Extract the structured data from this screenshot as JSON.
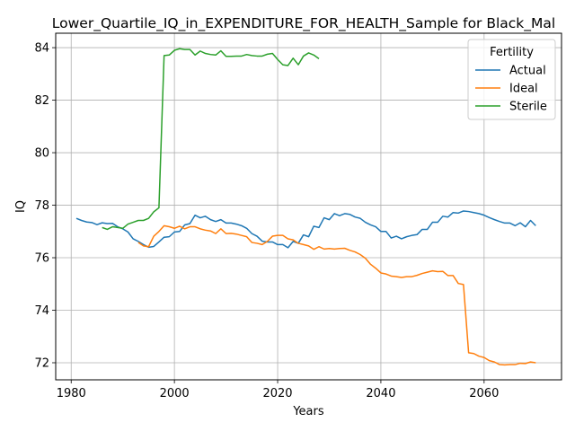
{
  "chart_data": {
    "type": "line",
    "title": "Lower_Quartile_IQ_in_EXPENDITURE_FOR_HEALTH_Sample for Black_Mal",
    "xlabel": "Years",
    "ylabel": "IQ",
    "xlim": [
      1977,
      2075
    ],
    "ylim": [
      71.35,
      84.55
    ],
    "xticks": [
      1980,
      2000,
      2020,
      2040,
      2060
    ],
    "yticks": [
      72,
      74,
      76,
      78,
      80,
      82,
      84
    ],
    "grid": true,
    "legend": {
      "title": "Fertility",
      "position": "top-right"
    },
    "series": [
      {
        "name": "Actual",
        "color": "#1f77b4",
        "points": [
          [
            1981,
            77.5
          ],
          [
            1982,
            77.42
          ],
          [
            1983,
            77.36
          ],
          [
            1984,
            77.34
          ],
          [
            1985,
            77.26
          ],
          [
            1986,
            77.33
          ],
          [
            1987,
            77.3
          ],
          [
            1988,
            77.31
          ],
          [
            1989,
            77.18
          ],
          [
            1990,
            77.1
          ],
          [
            1991,
            76.98
          ],
          [
            1992,
            76.72
          ],
          [
            1993,
            76.62
          ],
          [
            1994,
            76.5
          ],
          [
            1995,
            76.4
          ],
          [
            1996,
            76.43
          ],
          [
            1997,
            76.6
          ],
          [
            1998,
            76.78
          ],
          [
            1999,
            76.8
          ],
          [
            2000,
            76.98
          ],
          [
            2001,
            77.0
          ],
          [
            2002,
            77.25
          ],
          [
            2003,
            77.3
          ],
          [
            2004,
            77.62
          ],
          [
            2005,
            77.52
          ],
          [
            2006,
            77.58
          ],
          [
            2007,
            77.45
          ],
          [
            2008,
            77.38
          ],
          [
            2009,
            77.45
          ],
          [
            2010,
            77.32
          ],
          [
            2011,
            77.32
          ],
          [
            2012,
            77.28
          ],
          [
            2013,
            77.22
          ],
          [
            2014,
            77.12
          ],
          [
            2015,
            76.92
          ],
          [
            2016,
            76.82
          ],
          [
            2017,
            76.63
          ],
          [
            2018,
            76.6
          ],
          [
            2019,
            76.6
          ],
          [
            2020,
            76.5
          ],
          [
            2021,
            76.5
          ],
          [
            2022,
            76.38
          ],
          [
            2023,
            76.62
          ],
          [
            2024,
            76.55
          ],
          [
            2025,
            76.87
          ],
          [
            2026,
            76.8
          ],
          [
            2027,
            77.2
          ],
          [
            2028,
            77.15
          ],
          [
            2029,
            77.52
          ],
          [
            2030,
            77.45
          ],
          [
            2031,
            77.68
          ],
          [
            2032,
            77.6
          ],
          [
            2033,
            77.68
          ],
          [
            2034,
            77.65
          ],
          [
            2035,
            77.55
          ],
          [
            2036,
            77.5
          ],
          [
            2037,
            77.35
          ],
          [
            2038,
            77.25
          ],
          [
            2039,
            77.18
          ],
          [
            2040,
            77.0
          ],
          [
            2041,
            77.0
          ],
          [
            2042,
            76.75
          ],
          [
            2043,
            76.82
          ],
          [
            2044,
            76.72
          ],
          [
            2045,
            76.8
          ],
          [
            2046,
            76.85
          ],
          [
            2047,
            76.88
          ],
          [
            2048,
            77.08
          ],
          [
            2049,
            77.08
          ],
          [
            2050,
            77.35
          ],
          [
            2051,
            77.35
          ],
          [
            2052,
            77.58
          ],
          [
            2053,
            77.55
          ],
          [
            2054,
            77.72
          ],
          [
            2055,
            77.7
          ],
          [
            2056,
            77.78
          ],
          [
            2057,
            77.76
          ],
          [
            2058,
            77.72
          ],
          [
            2059,
            77.68
          ],
          [
            2060,
            77.62
          ],
          [
            2061,
            77.53
          ],
          [
            2062,
            77.45
          ],
          [
            2063,
            77.38
          ],
          [
            2064,
            77.32
          ],
          [
            2065,
            77.32
          ],
          [
            2066,
            77.22
          ],
          [
            2067,
            77.33
          ],
          [
            2068,
            77.18
          ],
          [
            2069,
            77.42
          ],
          [
            2070,
            77.22
          ]
        ]
      },
      {
        "name": "Ideal",
        "color": "#ff7f0e",
        "points": [
          [
            1993,
            76.58
          ],
          [
            1994,
            76.45
          ],
          [
            1995,
            76.42
          ],
          [
            1996,
            76.82
          ],
          [
            1997,
            77.0
          ],
          [
            1998,
            77.22
          ],
          [
            1999,
            77.18
          ],
          [
            2000,
            77.12
          ],
          [
            2001,
            77.2
          ],
          [
            2002,
            77.1
          ],
          [
            2003,
            77.18
          ],
          [
            2004,
            77.18
          ],
          [
            2005,
            77.1
          ],
          [
            2006,
            77.05
          ],
          [
            2007,
            77.02
          ],
          [
            2008,
            76.92
          ],
          [
            2009,
            77.1
          ],
          [
            2010,
            76.92
          ],
          [
            2011,
            76.93
          ],
          [
            2012,
            76.9
          ],
          [
            2013,
            76.85
          ],
          [
            2014,
            76.8
          ],
          [
            2015,
            76.58
          ],
          [
            2016,
            76.55
          ],
          [
            2017,
            76.5
          ],
          [
            2018,
            76.62
          ],
          [
            2019,
            76.82
          ],
          [
            2020,
            76.85
          ],
          [
            2021,
            76.85
          ],
          [
            2022,
            76.72
          ],
          [
            2023,
            76.68
          ],
          [
            2024,
            76.55
          ],
          [
            2025,
            76.5
          ],
          [
            2026,
            76.45
          ],
          [
            2027,
            76.32
          ],
          [
            2028,
            76.42
          ],
          [
            2029,
            76.33
          ],
          [
            2030,
            76.35
          ],
          [
            2031,
            76.33
          ],
          [
            2032,
            76.35
          ],
          [
            2033,
            76.36
          ],
          [
            2034,
            76.28
          ],
          [
            2035,
            76.22
          ],
          [
            2036,
            76.12
          ],
          [
            2037,
            75.98
          ],
          [
            2038,
            75.75
          ],
          [
            2039,
            75.6
          ],
          [
            2040,
            75.42
          ],
          [
            2041,
            75.38
          ],
          [
            2042,
            75.3
          ],
          [
            2043,
            75.28
          ],
          [
            2044,
            75.25
          ],
          [
            2045,
            75.28
          ],
          [
            2046,
            75.28
          ],
          [
            2047,
            75.33
          ],
          [
            2048,
            75.4
          ],
          [
            2049,
            75.45
          ],
          [
            2050,
            75.5
          ],
          [
            2051,
            75.47
          ],
          [
            2052,
            75.48
          ],
          [
            2053,
            75.32
          ],
          [
            2054,
            75.32
          ],
          [
            2055,
            75.02
          ],
          [
            2056,
            74.98
          ],
          [
            2057,
            72.38
          ],
          [
            2058,
            72.35
          ],
          [
            2059,
            72.25
          ],
          [
            2060,
            72.2
          ],
          [
            2061,
            72.08
          ],
          [
            2062,
            72.03
          ],
          [
            2063,
            71.93
          ],
          [
            2064,
            71.92
          ],
          [
            2065,
            71.93
          ],
          [
            2066,
            71.93
          ],
          [
            2067,
            71.98
          ],
          [
            2068,
            71.97
          ],
          [
            2069,
            72.03
          ],
          [
            2070,
            72.0
          ]
        ]
      },
      {
        "name": "Sterile",
        "color": "#2ca02c",
        "points": [
          [
            1986,
            77.15
          ],
          [
            1987,
            77.08
          ],
          [
            1988,
            77.18
          ],
          [
            1989,
            77.15
          ],
          [
            1990,
            77.12
          ],
          [
            1991,
            77.28
          ],
          [
            1992,
            77.35
          ],
          [
            1993,
            77.42
          ],
          [
            1994,
            77.42
          ],
          [
            1995,
            77.5
          ],
          [
            1996,
            77.75
          ],
          [
            1997,
            77.9
          ],
          [
            1998,
            83.7
          ],
          [
            1999,
            83.72
          ],
          [
            2000,
            83.9
          ],
          [
            2001,
            83.96
          ],
          [
            2002,
            83.93
          ],
          [
            2003,
            83.93
          ],
          [
            2004,
            83.72
          ],
          [
            2005,
            83.87
          ],
          [
            2006,
            83.78
          ],
          [
            2007,
            83.74
          ],
          [
            2008,
            83.72
          ],
          [
            2009,
            83.88
          ],
          [
            2010,
            83.67
          ],
          [
            2011,
            83.67
          ],
          [
            2012,
            83.68
          ],
          [
            2013,
            83.68
          ],
          [
            2014,
            83.74
          ],
          [
            2015,
            83.7
          ],
          [
            2016,
            83.68
          ],
          [
            2017,
            83.68
          ],
          [
            2018,
            83.75
          ],
          [
            2019,
            83.78
          ],
          [
            2020,
            83.55
          ],
          [
            2021,
            83.35
          ],
          [
            2022,
            83.32
          ],
          [
            2023,
            83.6
          ],
          [
            2024,
            83.35
          ],
          [
            2025,
            83.68
          ],
          [
            2026,
            83.8
          ],
          [
            2027,
            83.72
          ],
          [
            2028,
            83.58
          ]
        ]
      }
    ]
  }
}
